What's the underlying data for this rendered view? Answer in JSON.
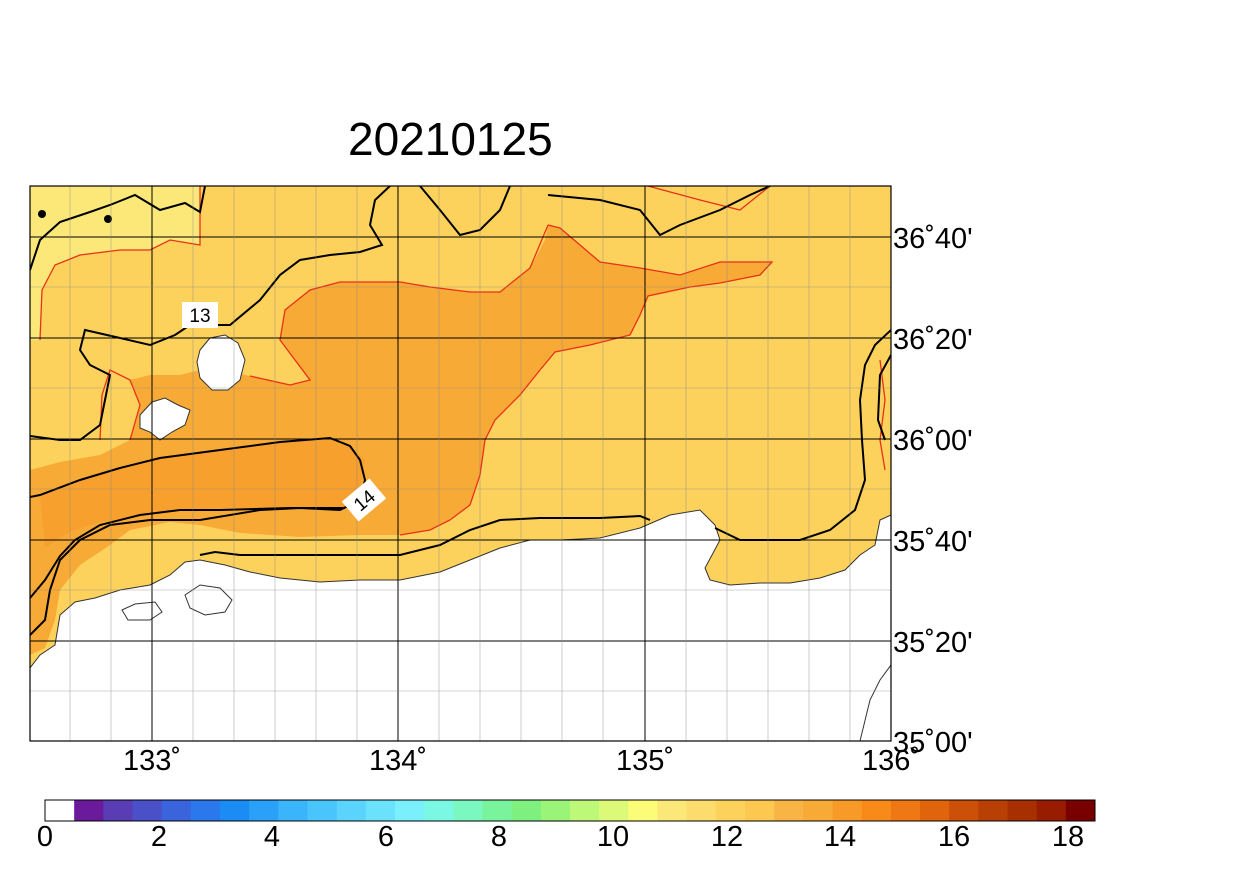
{
  "map": {
    "title": "20210125",
    "lon_ticks": [
      "133˚",
      "134˚",
      "135˚",
      "136˚"
    ],
    "lat_ticks": [
      "36˚40'",
      "36˚20'",
      "36˚00'",
      "35˚40'",
      "35˚20'",
      "35˚00'"
    ],
    "contour_labels": [
      "13",
      "14"
    ],
    "region": {
      "lon_min": 132.5,
      "lon_max": 136.0,
      "lat_min": 35.0,
      "lat_max": 36.833
    },
    "colors": {
      "level_12_13": "#fcd25c",
      "level_13_14": "#f8aa36",
      "level_11_12": "#fce878",
      "land": "#ffffff",
      "contour_black": "#000000",
      "contour_red": "#e8301a"
    }
  },
  "colorbar": {
    "ticks": [
      "0",
      "2",
      "4",
      "6",
      "8",
      "10",
      "12",
      "14",
      "16",
      "18"
    ],
    "colors": [
      "#ffffff",
      "#6a1a9a",
      "#5a3cb4",
      "#4a50c8",
      "#3a64dc",
      "#2a78ec",
      "#1a8cf4",
      "#2aa0f8",
      "#3ab4fa",
      "#4ac4fc",
      "#5ad4fc",
      "#6ae2fc",
      "#7af0fc",
      "#7af8e4",
      "#7af8c0",
      "#7af49c",
      "#7ef080",
      "#9af478",
      "#bef878",
      "#dcfa78",
      "#fcfc78",
      "#fce878",
      "#fcdc6c",
      "#fcd25c",
      "#fcc850",
      "#f8b444",
      "#f8aa36",
      "#f89a28",
      "#f88a1a",
      "#f07814",
      "#e0640c",
      "#cc5008",
      "#b84004",
      "#a83000",
      "#981c00",
      "#780000"
    ]
  }
}
